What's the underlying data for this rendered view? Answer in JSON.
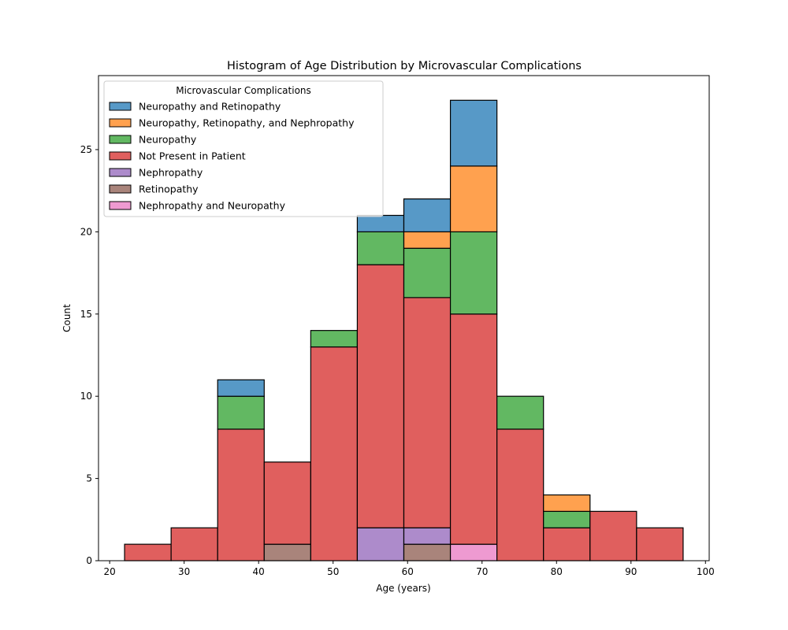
{
  "chart_data": {
    "type": "bar",
    "subtype": "stacked-histogram",
    "title": "Histogram of Age Distribution by Microvascular Complications",
    "xlabel": "Age (years)",
    "ylabel": "Count",
    "xlim": [
      18.5,
      100.5
    ],
    "ylim": [
      0,
      29.5
    ],
    "x_ticks": [
      20,
      30,
      40,
      50,
      60,
      70,
      80,
      90,
      100
    ],
    "y_ticks": [
      0,
      5,
      10,
      15,
      20,
      25
    ],
    "grid": false,
    "legend": {
      "title": "Microvascular Complications",
      "placement": "top-left"
    },
    "bin_edges": [
      22,
      28.25,
      34.5,
      40.75,
      47,
      53.25,
      59.5,
      65.75,
      72,
      78.25,
      84.5,
      90.75,
      97
    ],
    "stack_order": [
      "Retinopathy",
      "Nephropathy",
      "Nephropathy and Neuropathy",
      "Not Present in Patient",
      "Neuropathy",
      "Neuropathy, Retinopathy, and Nephropathy",
      "Neuropathy and Retinopathy"
    ],
    "series": [
      {
        "name": "Neuropathy and Retinopathy",
        "color": "#5799c7",
        "values": [
          0,
          0,
          1,
          0,
          0,
          1,
          2,
          4,
          0,
          0,
          0,
          0
        ]
      },
      {
        "name": "Neuropathy, Retinopathy, and Nephropathy",
        "color": "#ffa14f",
        "values": [
          0,
          0,
          0,
          0,
          0,
          0,
          1,
          4,
          0,
          1,
          0,
          0
        ]
      },
      {
        "name": "Neuropathy",
        "color": "#62b862",
        "values": [
          0,
          0,
          2,
          0,
          1,
          2,
          3,
          5,
          2,
          1,
          0,
          0
        ]
      },
      {
        "name": "Not Present in Patient",
        "color": "#e05f5e",
        "values": [
          1,
          2,
          8,
          5,
          13,
          16,
          14,
          14,
          8,
          2,
          3,
          2
        ]
      },
      {
        "name": "Nephropathy",
        "color": "#ad8bcb",
        "values": [
          0,
          0,
          0,
          0,
          0,
          2,
          1,
          0,
          0,
          0,
          0,
          0
        ]
      },
      {
        "name": "Retinopathy",
        "color": "#a9847b",
        "values": [
          0,
          0,
          0,
          1,
          0,
          0,
          1,
          0,
          0,
          0,
          0,
          0
        ]
      },
      {
        "name": "Nephropathy and Neuropathy",
        "color": "#ee9ad1",
        "values": [
          0,
          0,
          0,
          0,
          0,
          0,
          0,
          1,
          0,
          0,
          0,
          0
        ]
      }
    ]
  }
}
